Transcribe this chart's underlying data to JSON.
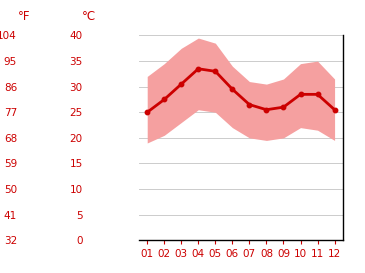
{
  "months": [
    1,
    2,
    3,
    4,
    5,
    6,
    7,
    8,
    9,
    10,
    11,
    12
  ],
  "mean_temp_c": [
    25.0,
    27.5,
    30.5,
    33.5,
    33.0,
    29.5,
    26.5,
    25.5,
    26.0,
    28.5,
    28.5,
    25.5
  ],
  "max_temp_c": [
    32.0,
    34.5,
    37.5,
    39.5,
    38.5,
    34.0,
    31.0,
    30.5,
    31.5,
    34.5,
    35.0,
    31.5
  ],
  "min_temp_c": [
    19.0,
    20.5,
    23.0,
    25.5,
    25.0,
    22.0,
    20.0,
    19.5,
    20.0,
    22.0,
    21.5,
    19.5
  ],
  "line_color": "#cc0000",
  "band_color": "#f5a0a0",
  "tick_color": "#cc0000",
  "grid_color": "#cccccc",
  "label_f": "°F",
  "label_c": "°C",
  "yticks_c": [
    0,
    5,
    10,
    15,
    20,
    25,
    30,
    35,
    40
  ],
  "yticks_f": [
    32,
    41,
    50,
    59,
    68,
    77,
    86,
    95,
    104
  ],
  "xlim": [
    0.5,
    12.5
  ],
  "ylim_c": [
    0,
    40
  ],
  "background_color": "#ffffff"
}
